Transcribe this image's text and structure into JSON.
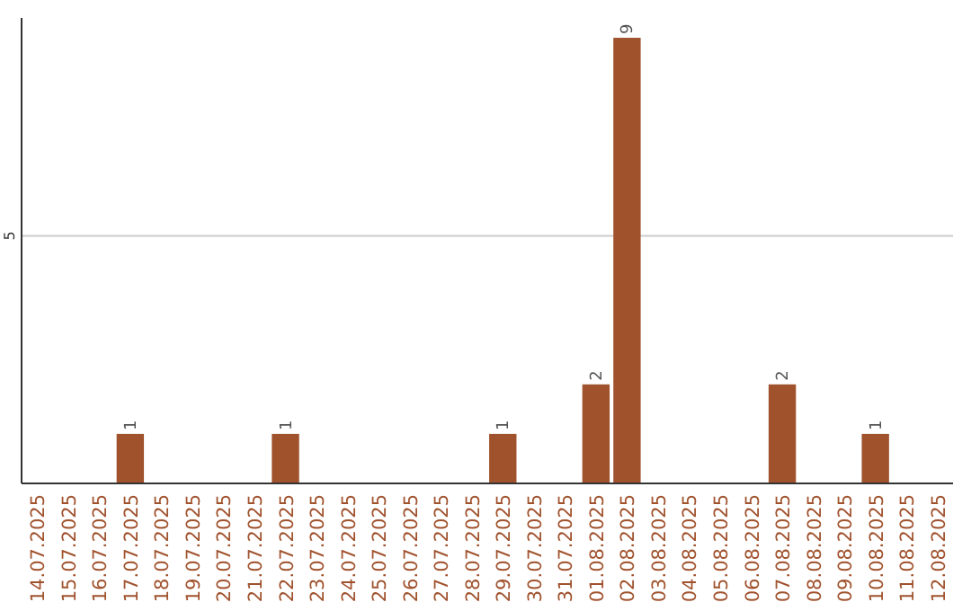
{
  "chart_data": {
    "type": "bar",
    "categories": [
      "14.07.2025",
      "15.07.2025",
      "16.07.2025",
      "17.07.2025",
      "18.07.2025",
      "19.07.2025",
      "20.07.2025",
      "21.07.2025",
      "22.07.2025",
      "23.07.2025",
      "24.07.2025",
      "25.07.2025",
      "26.07.2025",
      "27.07.2025",
      "28.07.2025",
      "29.07.2025",
      "30.07.2025",
      "31.07.2025",
      "01.08.2025",
      "02.08.2025",
      "03.08.2025",
      "04.08.2025",
      "05.08.2025",
      "06.08.2025",
      "07.08.2025",
      "08.08.2025",
      "09.08.2025",
      "10.08.2025",
      "11.08.2025",
      "12.08.2025"
    ],
    "values": [
      0,
      0,
      0,
      1,
      0,
      0,
      0,
      0,
      1,
      0,
      0,
      0,
      0,
      0,
      0,
      1,
      0,
      0,
      2,
      9,
      0,
      0,
      0,
      0,
      2,
      0,
      0,
      1,
      0,
      0
    ],
    "value_labels": [
      null,
      null,
      null,
      "1",
      null,
      null,
      null,
      null,
      "1",
      null,
      null,
      null,
      null,
      null,
      null,
      "1",
      null,
      null,
      "2",
      "9",
      null,
      null,
      null,
      null,
      "2",
      null,
      null,
      "1",
      null,
      null
    ],
    "color": "#a0522d",
    "ylim": [
      0,
      9.4
    ],
    "yticks": [
      5
    ],
    "grid": "y"
  }
}
